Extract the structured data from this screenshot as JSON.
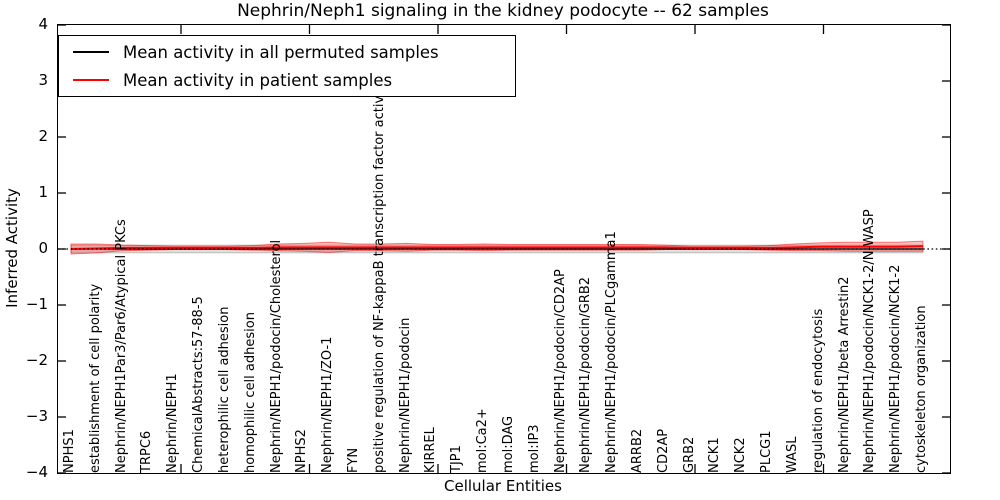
{
  "title": "Nephrin/Neph1 signaling in the kidney podocyte -- 62 samples",
  "legend": {
    "entries": [
      {
        "label": "Mean activity in all permuted samples",
        "color": "#000000"
      },
      {
        "label": "Mean activity in patient samples",
        "color": "#ff0000"
      }
    ]
  },
  "chart_data": {
    "type": "line",
    "title": "Nephrin/Neph1 signaling in the kidney podocyte -- 62 samples",
    "xlabel": "Cellular Entities",
    "ylabel": "Inferred Activity",
    "ylim": [
      -4,
      4
    ],
    "yticks": [
      -4,
      -3,
      -2,
      -1,
      0,
      1,
      2,
      3,
      4
    ],
    "grid": false,
    "legend_position": "upper left",
    "zero_line": {
      "y": 0,
      "style": "dotted",
      "color": "#000000"
    },
    "categories": [
      "NPHS1",
      "establishment of cell polarity",
      "Nephrin/NEPH1Par3/Par6/Atypical PKCs",
      "TRPC6",
      "Nephrin/NEPH1",
      "ChemicalAbstracts:57-88-5",
      "heterophilic cell adhesion",
      "homophilic cell adhesion",
      "Nephrin/NEPH1/podocin/Cholesterol",
      "NPHS2",
      "Nephrin/NEPH1/ZO-1",
      "FYN",
      "positive regulation of NF-kappaB transcription factor activity",
      "Nephrin/NEPH1/podocin",
      "KIRREL",
      "TJP1",
      "mol:Ca2+",
      "mol:DAG",
      "mol:IP3",
      "Nephrin/NEPH1/podocin/CD2AP",
      "Nephrin/NEPH1/podocin/GRB2",
      "Nephrin/NEPH1/podocin/PLCgamma1",
      "ARRB2",
      "CD2AP",
      "GRB2",
      "NCK1",
      "NCK2",
      "PLCG1",
      "WASL",
      "regulation of endocytosis",
      "Nephrin/NEPH1/beta Arrestin2",
      "Nephrin/NEPH1/podocin/NCK1-2/N-WASP",
      "Nephrin/NEPH1/podocin/NCK1-2",
      "cytoskeleton organization"
    ],
    "series": [
      {
        "name": "Mean activity in all permuted samples",
        "color": "#000000",
        "band_color": "rgba(0,0,0,0.13)",
        "band_edge_color": "rgba(0,0,0,0.20)",
        "values": [
          0,
          0,
          0,
          0,
          0,
          0,
          0,
          0,
          0,
          0,
          0,
          0,
          0,
          0,
          0,
          0,
          0,
          0,
          0,
          0,
          0,
          0,
          0,
          0,
          0,
          0,
          0,
          0,
          0,
          0,
          0,
          0,
          0,
          0
        ],
        "band_halfwidth": [
          0.07,
          0.07,
          0.07,
          0.07,
          0.07,
          0.07,
          0.07,
          0.07,
          0.07,
          0.07,
          0.07,
          0.07,
          0.07,
          0.07,
          0.07,
          0.07,
          0.07,
          0.07,
          0.07,
          0.07,
          0.07,
          0.07,
          0.07,
          0.07,
          0.07,
          0.07,
          0.07,
          0.07,
          0.07,
          0.07,
          0.07,
          0.07,
          0.07,
          0.07
        ]
      },
      {
        "name": "Mean activity in patient samples",
        "color": "#ff0000",
        "band_color": "rgba(255,0,0,0.25)",
        "band_edge_color": "rgba(255,0,0,0.50)",
        "values": [
          0.0,
          0.01,
          0.02,
          0.02,
          0.02,
          0.02,
          0.02,
          0.02,
          0.03,
          0.03,
          0.03,
          0.03,
          0.03,
          0.03,
          0.03,
          0.03,
          0.03,
          0.03,
          0.03,
          0.03,
          0.03,
          0.03,
          0.03,
          0.03,
          0.02,
          0.02,
          0.02,
          0.02,
          0.03,
          0.04,
          0.04,
          0.04,
          0.04,
          0.05
        ],
        "band_halfwidth": [
          0.09,
          0.08,
          0.05,
          0.04,
          0.03,
          0.03,
          0.03,
          0.04,
          0.06,
          0.07,
          0.09,
          0.06,
          0.06,
          0.07,
          0.05,
          0.05,
          0.06,
          0.05,
          0.05,
          0.05,
          0.05,
          0.05,
          0.05,
          0.04,
          0.03,
          0.03,
          0.03,
          0.04,
          0.06,
          0.07,
          0.08,
          0.08,
          0.08,
          0.09
        ]
      }
    ]
  }
}
